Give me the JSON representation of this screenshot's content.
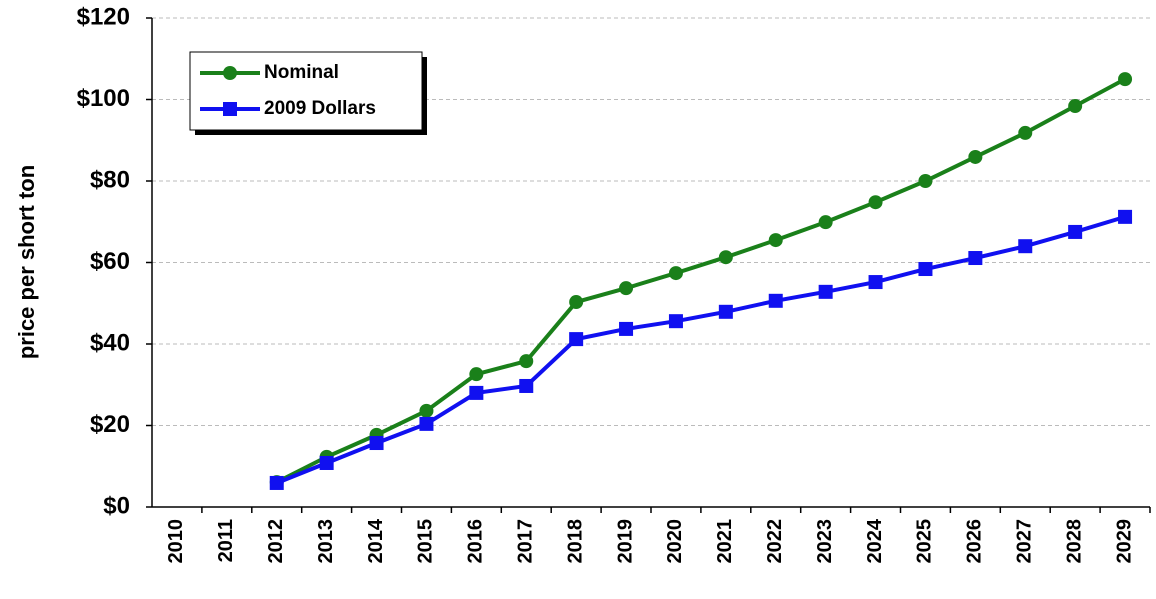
{
  "chart_data": {
    "type": "line",
    "y_label": "price per short ton",
    "categories": [
      "2010",
      "2011",
      "2012",
      "2013",
      "2014",
      "2015",
      "2016",
      "2017",
      "2018",
      "2019",
      "2020",
      "2021",
      "2022",
      "2023",
      "2024",
      "2025",
      "2026",
      "2027",
      "2028",
      "2029"
    ],
    "series": [
      {
        "name": "Nominal",
        "color": "#1a801a",
        "marker": "circle",
        "values": [
          null,
          null,
          6.1,
          12.3,
          17.7,
          23.6,
          32.6,
          35.8,
          50.3,
          53.7,
          57.4,
          61.3,
          65.5,
          69.9,
          74.8,
          80,
          85.9,
          91.8,
          98.4,
          105
        ]
      },
      {
        "name": "2009 Dollars",
        "color": "#1010f0",
        "marker": "square",
        "values": [
          null,
          null,
          5.9,
          10.8,
          15.7,
          20.4,
          28,
          29.7,
          41.2,
          43.7,
          45.6,
          47.9,
          50.6,
          52.8,
          55.2,
          58.4,
          61.1,
          64,
          67.5,
          71.2
        ]
      }
    ],
    "ylim": [
      0,
      120
    ],
    "yticks": [
      {
        "value": 0,
        "label": "$0"
      },
      {
        "value": 20,
        "label": "$20"
      },
      {
        "value": 40,
        "label": "$40"
      },
      {
        "value": 60,
        "label": "$60"
      },
      {
        "value": 80,
        "label": "$80"
      },
      {
        "value": 100,
        "label": "$100"
      },
      {
        "value": 120,
        "label": "$120"
      }
    ],
    "grid": true,
    "legend": "upper left"
  }
}
